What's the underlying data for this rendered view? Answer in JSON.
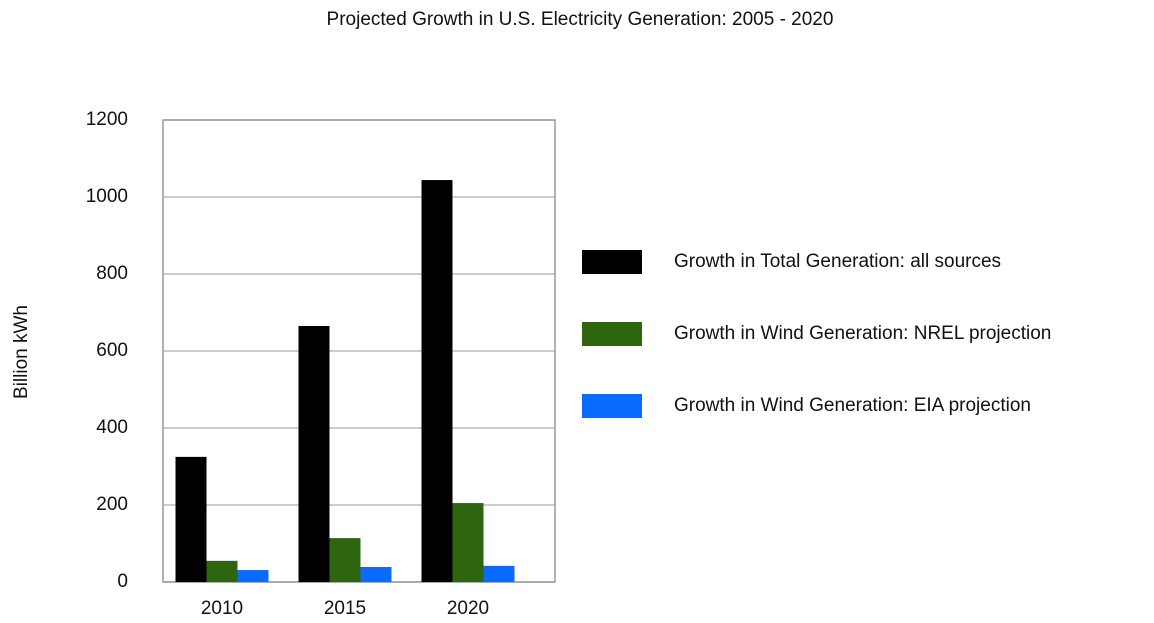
{
  "chart_data": {
    "type": "bar",
    "title": "Projected Growth in U.S. Electricity Generation:  2005 - 2020",
    "y_label": "Billion kWh",
    "categories": [
      "2010",
      "2015",
      "2020"
    ],
    "series": [
      {
        "name": "Growth in Total Generation: all sources",
        "color": "#000000",
        "values": [
          325,
          665,
          1044
        ]
      },
      {
        "name": "Growth in Wind Generation: NREL projection",
        "color": "#2e650f",
        "values": [
          55,
          114,
          205
        ]
      },
      {
        "name": "Growth in Wind Generation: EIA projection",
        "color": "#0a6cff",
        "values": [
          31,
          39,
          42
        ]
      }
    ],
    "ylim": [
      0,
      1200
    ],
    "yticks": [
      0,
      200,
      400,
      600,
      800,
      1000,
      1200
    ],
    "grid": true,
    "legend": "right"
  }
}
